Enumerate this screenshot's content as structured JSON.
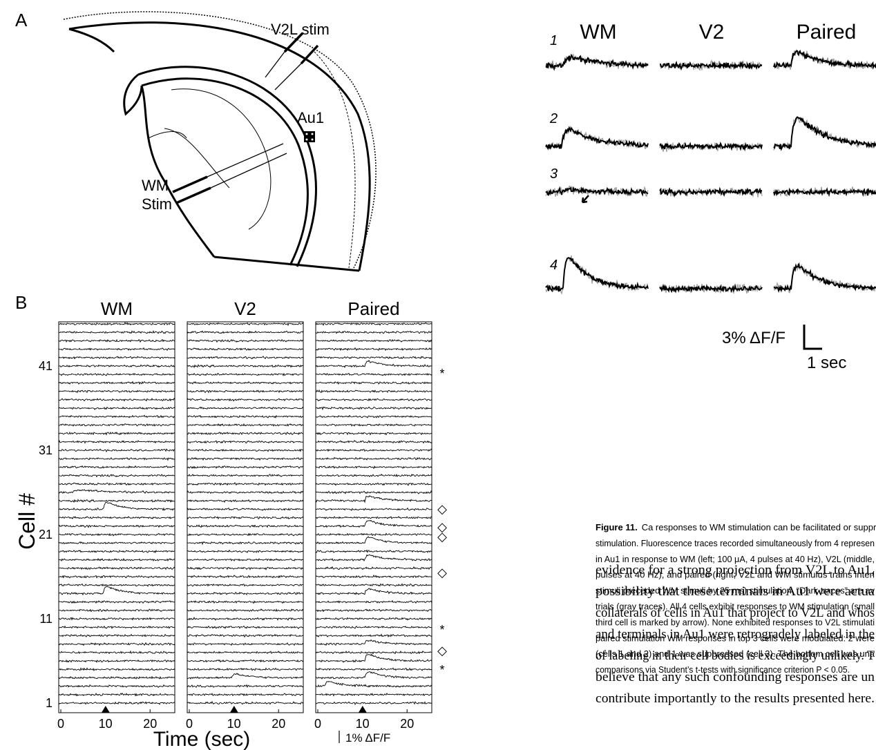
{
  "panel_a": {
    "label": "A",
    "electrode_1": "V2L stim",
    "region": "Au1",
    "electrode_2_line_1": "WM",
    "electrode_2_line_2": "Stim"
  },
  "panel_b": {
    "label": "B",
    "columns": [
      "WM",
      "V2",
      "Paired"
    ],
    "y_axis_label": "Cell #",
    "y_ticks": [
      "1",
      "11",
      "21",
      "31",
      "41"
    ],
    "x_ticks": [
      "0",
      "10",
      "20"
    ],
    "x_axis_label": "Time (sec)",
    "scale_bar": "1% ΔF/F",
    "markers": [
      "*",
      "◇",
      "◇",
      "◇",
      "◇",
      "*",
      "◇",
      "*"
    ]
  },
  "panel_c": {
    "columns": [
      "WM",
      "V2",
      "Paired"
    ],
    "cells": [
      "1",
      "2",
      "3",
      "4"
    ],
    "scale_y": "3% ΔF/F",
    "scale_x": "1 sec"
  },
  "caption": {
    "label": "Figure 11.",
    "lines": [
      "Ca responses to WM stimulation can be facilitated or suppre",
      "stimulation. Fluorescence traces recorded simultaneously from 4 represen",
      "in Au1 in response to WM (left; 100 μA, 4 pulses at 40 Hz), V2L (middle,",
      "pulses at 40 Hz), and paired (right; V2L and WM stimulus trains interl",
      "stimuli preceded WM stimuli by 25 ms) stimulation. “Dark traces” are av",
      "trials (gray traces). All 4 cells exhibit responses to WM stimulation (small",
      "third cell is marked by arrow). None exhibited responses to V2L stimulati",
      "paired stimulation WM responses in top 3 cells were modulated: 2 were",
      "(cells 1 and 2) and 1 was suppressed (cell 3). The bottom cell was una",
      "comparisons via Student’s t-tests with significance criterion P < 0.05."
    ]
  },
  "body": {
    "lines": [
      "evidence for a strong projection from V2L to Au1,",
      "possibility that these terminals in Au1 were actua",
      "collaterals of cells in Au1 that project to V2L and whos",
      "and terminals in Au1 were retrogradely labeled in the",
      "of labeling in their cell bodies is exceedingly unlikely. T",
      "believe that any such confounding responses are un",
      "contribute importantly to the results presented here."
    ]
  }
}
